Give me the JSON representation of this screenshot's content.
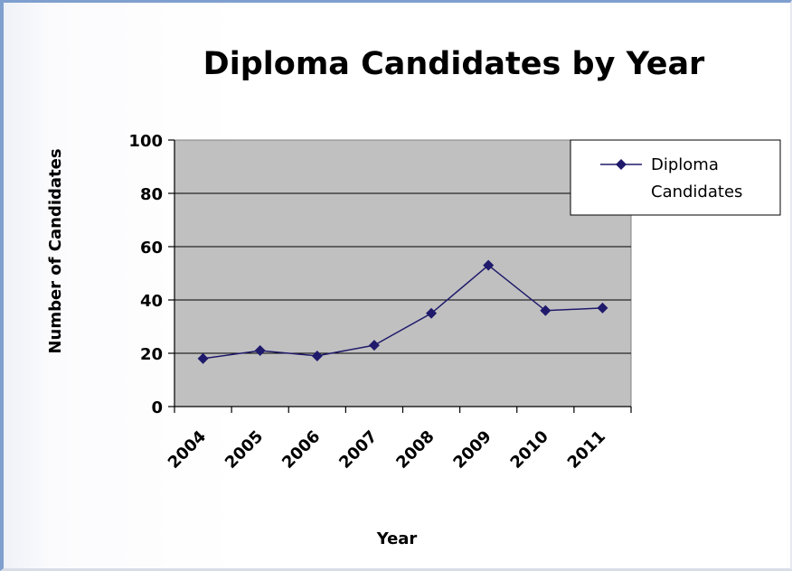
{
  "chart_data": {
    "type": "line",
    "title": "Diploma Candidates by Year",
    "xlabel": "Year",
    "ylabel": "Number of Candidates",
    "categories": [
      "2004",
      "2005",
      "2006",
      "2007",
      "2008",
      "2009",
      "2010",
      "2011"
    ],
    "series": [
      {
        "name_lines": [
          "Diploma",
          "Candidates"
        ],
        "values": [
          18,
          21,
          19,
          23,
          35,
          53,
          36,
          37
        ],
        "color": "#1f1a6b"
      }
    ],
    "ylim": [
      0,
      100
    ],
    "yticks": [
      0,
      20,
      40,
      60,
      80,
      100
    ],
    "grid": true,
    "legend": "top-right",
    "plot_background": "#c0c0c0"
  }
}
